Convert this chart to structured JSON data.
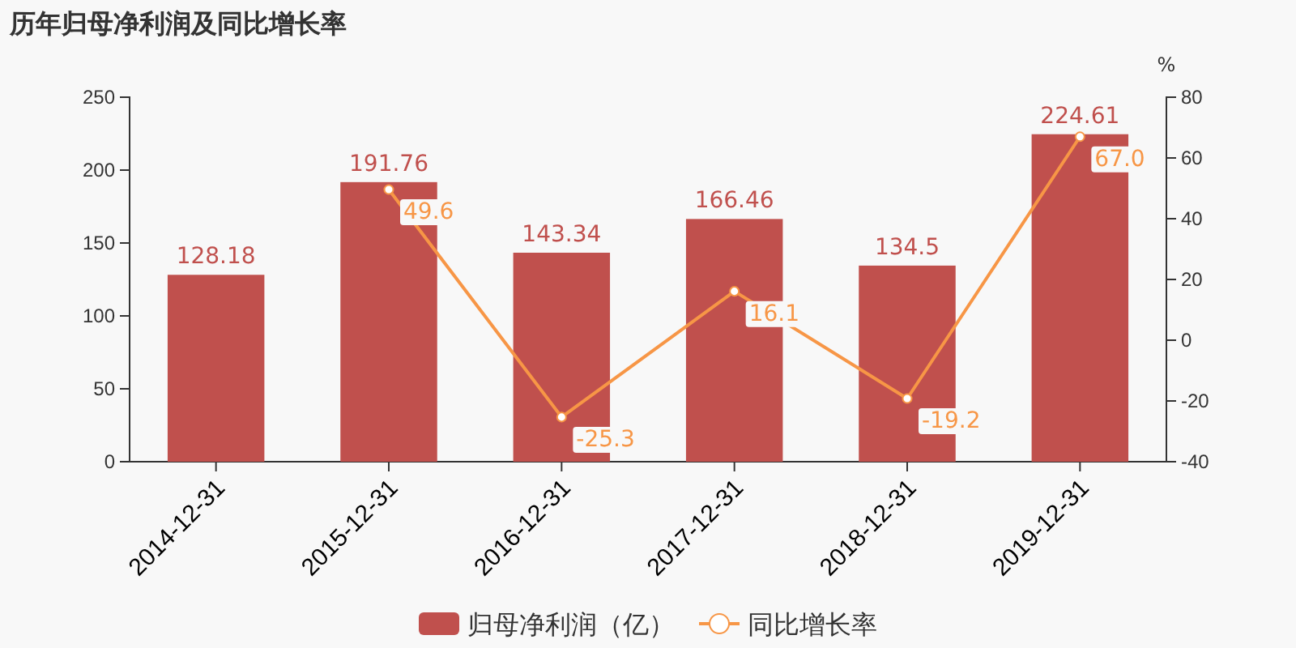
{
  "chart_data": {
    "type": "bar",
    "title": "历年归母净利润及同比增长率",
    "y2label": "%",
    "categories": [
      "2014-12-31",
      "2015-12-31",
      "2016-12-31",
      "2017-12-31",
      "2018-12-31",
      "2019-12-31"
    ],
    "series": [
      {
        "name": "归母净利润（亿）",
        "color": "#c0504d",
        "values": [
          128.18,
          191.76,
          143.34,
          166.46,
          134.5,
          224.61
        ],
        "value_labels": [
          "128.18",
          "191.76",
          "143.34",
          "166.46",
          "134.5",
          "224.61"
        ]
      },
      {
        "name": "同比增长率",
        "type": "line",
        "axis": "y2",
        "color": "#f79646",
        "marker": "circle",
        "values": [
          null,
          49.6,
          -25.3,
          16.1,
          -19.2,
          67.0
        ],
        "value_labels": [
          null,
          "49.6",
          "-25.3",
          "16.1",
          "-19.2",
          "67.0"
        ]
      }
    ],
    "ylim": [
      0,
      250
    ],
    "yticks": [
      0,
      50,
      100,
      150,
      200,
      250
    ],
    "y2lim": [
      -40,
      80
    ],
    "y2ticks": [
      -40,
      -20,
      0,
      20,
      40,
      60,
      80
    ],
    "grid": false,
    "legend": "bottom"
  }
}
